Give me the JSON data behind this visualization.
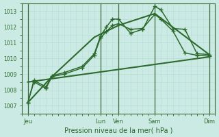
{
  "xlabel": "Pression niveau de la mer( hPa )",
  "background_color": "#cceae4",
  "grid_color": "#b8ddd7",
  "line_color": "#2d6a2d",
  "ylim": [
    1006.5,
    1013.5
  ],
  "xlim": [
    -0.5,
    15.5
  ],
  "xtick_labels": [
    "Jeu",
    "Lun",
    "Ven",
    "Sam",
    "Dim"
  ],
  "xtick_positions": [
    0,
    6,
    7.5,
    10.5,
    15
  ],
  "ytick_values": [
    1007,
    1008,
    1009,
    1010,
    1011,
    1012,
    1013
  ],
  "vlines_x": [
    0,
    6,
    7.5,
    10.5,
    15
  ],
  "series": [
    {
      "x": [
        0,
        0.5,
        1.5,
        2,
        3,
        4.5,
        5.5,
        6,
        6.5,
        7,
        7.5,
        8.5,
        9.5,
        10.5,
        11,
        12,
        13,
        14,
        15
      ],
      "y": [
        1007.2,
        1008.6,
        1008.2,
        1008.9,
        1009.1,
        1009.5,
        1010.3,
        1011.4,
        1012.0,
        1012.5,
        1012.5,
        1011.6,
        1011.85,
        1013.3,
        1013.1,
        1011.9,
        1011.85,
        1010.3,
        1010.25
      ],
      "marker": "+",
      "lw": 1.1,
      "linestyle": "-"
    },
    {
      "x": [
        0,
        0.5,
        1.5,
        2,
        3,
        4.5,
        5.5,
        6,
        6.5,
        7,
        7.5,
        8.5,
        9.5,
        10.5,
        11,
        12,
        13,
        14,
        15
      ],
      "y": [
        1007.2,
        1008.5,
        1008.1,
        1008.85,
        1009.0,
        1009.4,
        1010.2,
        1011.3,
        1011.7,
        1012.1,
        1012.2,
        1011.85,
        1011.9,
        1012.8,
        1012.5,
        1011.75,
        1010.35,
        1010.2,
        1010.15
      ],
      "marker": "+",
      "lw": 1.1,
      "linestyle": "-"
    },
    {
      "x": [
        0,
        2,
        5.5,
        7.5,
        10.5,
        15
      ],
      "y": [
        1007.2,
        1008.85,
        1011.35,
        1012.1,
        1012.85,
        1010.25
      ],
      "marker": null,
      "lw": 1.5,
      "linestyle": "-"
    },
    {
      "x": [
        0,
        15
      ],
      "y": [
        1008.5,
        1010.1
      ],
      "marker": null,
      "lw": 1.5,
      "linestyle": "-"
    }
  ]
}
